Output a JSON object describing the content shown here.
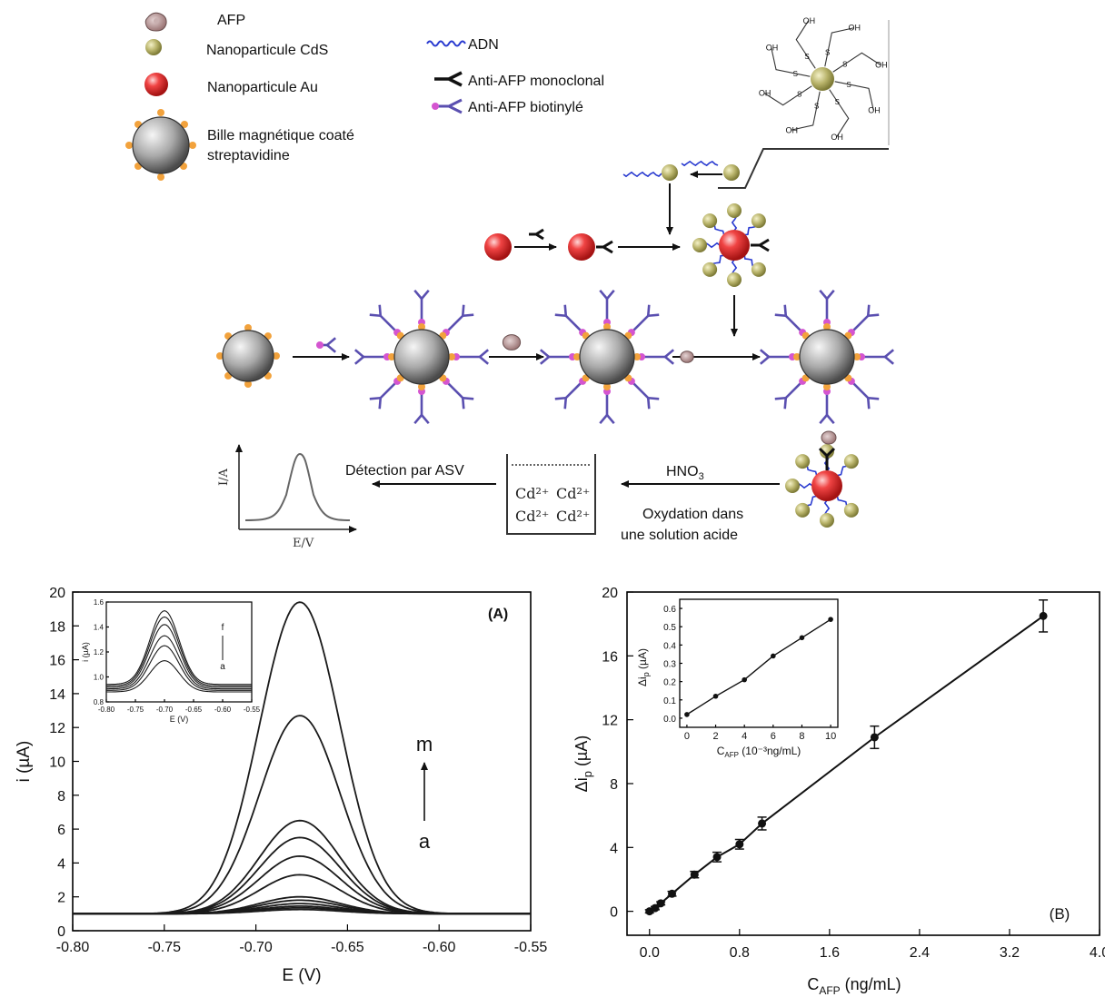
{
  "legend": {
    "items": [
      {
        "label": "AFP"
      },
      {
        "label": "Nanoparticule CdS"
      },
      {
        "label": "Nanoparticule Au"
      },
      {
        "label": "Bille magnétique coaté",
        "label2": "streptavidine"
      },
      {
        "label": "ADN"
      },
      {
        "label": "Anti-AFP monoclonal"
      },
      {
        "label": "Anti-AFP biotinylé"
      }
    ]
  },
  "scheme": {
    "hno3_label": "HNO",
    "hno3_sub": "3",
    "oxidation_line1": "Oxydation dans",
    "oxidation_line2": "une solution acide",
    "detection_label": "Détection  par ASV",
    "ions": [
      "Cd²⁺",
      "Cd²⁺",
      "Cd²⁺",
      "Cd²⁺"
    ],
    "mini_plot_ylabel": "I/A",
    "mini_plot_xlabel": "E/V",
    "molecule_labels": [
      "OH",
      "S"
    ]
  },
  "colors": {
    "gold_particle": "#b0ad5a",
    "red_particle": "#e0262b",
    "magnetic_bead": "#9a9a9a",
    "streptavidin": "#f2a23c",
    "dna": "#2a3bd0",
    "biotin": "#d455d0",
    "antibody": "#5a4fb0",
    "afp": "#b89494"
  },
  "chart_data": [
    {
      "type": "line",
      "panel_label": "(A)",
      "xlabel": "E (V)",
      "ylabel": "i (µA)",
      "xlim": [
        -0.8,
        -0.55
      ],
      "ylim": [
        0,
        20
      ],
      "x_ticks": [
        "-0.80",
        "-0.75",
        "-0.70",
        "-0.65",
        "-0.60",
        "-0.55"
      ],
      "y_ticks": [
        "0",
        "2",
        "4",
        "6",
        "8",
        "10",
        "12",
        "14",
        "16",
        "18",
        "20"
      ],
      "annotation_top": "m",
      "annotation_bottom": "a",
      "peak_potential": -0.676,
      "baseline": 1.0,
      "peak_heights": [
        1.25,
        1.35,
        1.45,
        1.6,
        1.8,
        2.0,
        3.3,
        4.4,
        5.5,
        6.5,
        12.7,
        19.4
      ],
      "inset": {
        "xlabel": "E (V)",
        "ylabel": "i (µA)",
        "xlim": [
          -0.8,
          -0.55
        ],
        "ylim": [
          0.8,
          1.6
        ],
        "x_ticks": [
          "-0.80",
          "-0.75",
          "-0.70",
          "-0.65",
          "-0.60",
          "-0.55"
        ],
        "y_ticks": [
          "0.8",
          "1.0",
          "1.2",
          "1.4",
          "1.6"
        ],
        "annotation_top": "f",
        "annotation_bottom": "a",
        "peak_potential": -0.7,
        "peak_heights": [
          1.13,
          1.25,
          1.33,
          1.42,
          1.48,
          1.53
        ]
      }
    },
    {
      "type": "scatter",
      "panel_label": "(B)",
      "xlabel": "C",
      "xlabel_sub": "AFP",
      "xlabel_unit": " (ng/mL)",
      "ylabel": "Δi",
      "ylabel_sub": "p",
      "ylabel_unit": " (µA)",
      "xlim": [
        -0.2,
        4.0
      ],
      "ylim": [
        -1.5,
        20
      ],
      "x_ticks": [
        "0.0",
        "0.8",
        "1.6",
        "2.4",
        "3.2",
        "4.0"
      ],
      "y_ticks": [
        "0",
        "4",
        "8",
        "12",
        "16",
        "20"
      ],
      "x": [
        0,
        0.05,
        0.1,
        0.2,
        0.4,
        0.6,
        0.8,
        1.0,
        2.0,
        3.5
      ],
      "y": [
        0.0,
        0.2,
        0.5,
        1.1,
        2.3,
        3.4,
        4.2,
        5.5,
        10.9,
        18.5
      ],
      "error": [
        0.1,
        0.1,
        0.1,
        0.15,
        0.2,
        0.3,
        0.3,
        0.4,
        0.7,
        1.0
      ],
      "inset": {
        "xlabel": "C",
        "xlabel_sub": "AFP",
        "xlabel_unit": " (10⁻³ng/mL)",
        "ylabel": "Δi",
        "ylabel_sub": "p",
        "ylabel_unit": " (µA)",
        "xlim": [
          -0.5,
          10.5
        ],
        "ylim": [
          -0.05,
          0.65
        ],
        "x_ticks": [
          "0",
          "2",
          "4",
          "6",
          "8",
          "10"
        ],
        "y_ticks": [
          "0.0",
          "0.1",
          "0.2",
          "0.3",
          "0.4",
          "0.5",
          "0.6"
        ],
        "x": [
          0,
          2,
          4,
          6,
          8,
          10
        ],
        "y": [
          0.02,
          0.12,
          0.21,
          0.34,
          0.44,
          0.54
        ]
      }
    }
  ]
}
